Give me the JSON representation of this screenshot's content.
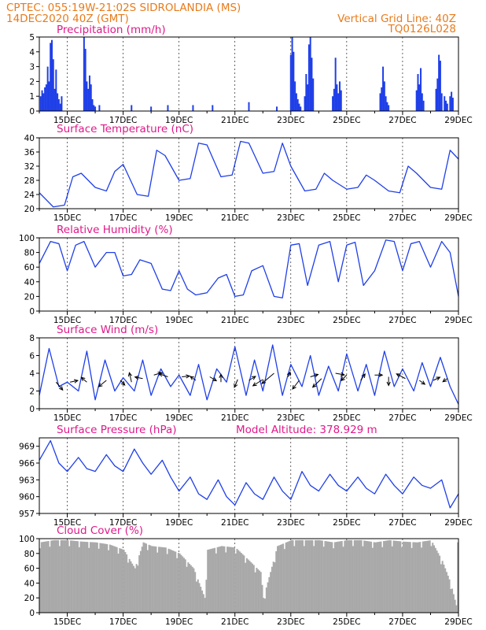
{
  "header": {
    "line1_left": "CPTEC:   055:19W-21:02S  SIDROLANDIA (MS)",
    "line2_left": "14DEC2020 40Z (GMT)",
    "line1_right": "Vertical Grid Line: 40Z",
    "line2_right": "TQ0126L028"
  },
  "colors": {
    "series": "#1f3fe8",
    "header": "#e87b1c",
    "title": "#e0198a",
    "cloud": "#a9a9a9",
    "wind_arrow": "#000000"
  },
  "x_axis": {
    "start": "14DEC2020",
    "end": "29DEC2020",
    "tick_labels": [
      "15DEC",
      "17DEC",
      "19DEC",
      "21DEC",
      "23DEC",
      "25DEC",
      "27DEC",
      "29DEC"
    ],
    "tick_days": [
      1,
      3,
      5,
      7,
      9,
      11,
      13,
      15
    ]
  },
  "chart_data": [
    {
      "type": "bar",
      "title": "Precipitation (mm/h)",
      "ylim": [
        0,
        5
      ],
      "yticks": [
        "0",
        "1",
        "2",
        "3",
        "4",
        "5"
      ],
      "ytick_values": [
        0,
        1,
        2,
        3,
        4,
        5
      ],
      "x": [
        0.05,
        0.1,
        0.15,
        0.2,
        0.25,
        0.3,
        0.35,
        0.4,
        0.45,
        0.5,
        0.55,
        0.6,
        0.65,
        0.7,
        0.75,
        0.8,
        1.6,
        1.65,
        1.7,
        1.75,
        1.8,
        1.85,
        1.9,
        1.95,
        2.0,
        2.15,
        3.3,
        4.0,
        4.6,
        5.5,
        6.2,
        7.5,
        8.5,
        9.0,
        9.05,
        9.1,
        9.15,
        9.2,
        9.25,
        9.3,
        9.35,
        9.5,
        9.55,
        9.6,
        9.65,
        9.7,
        9.75,
        9.8,
        10.5,
        10.55,
        10.6,
        10.65,
        10.7,
        10.75,
        10.8,
        12.2,
        12.25,
        12.3,
        12.35,
        12.4,
        12.45,
        12.5,
        13.5,
        13.55,
        13.6,
        13.65,
        13.7,
        13.75,
        14.2,
        14.25,
        14.3,
        14.35,
        14.4,
        14.5,
        14.55,
        14.6,
        14.7,
        14.75,
        14.8
      ],
      "values": [
        1.0,
        1.4,
        1.2,
        1.6,
        1.8,
        3.0,
        2.0,
        4.6,
        4.8,
        3.5,
        1.5,
        2.8,
        1.2,
        0.8,
        0.5,
        1.0,
        5.0,
        4.2,
        2.0,
        1.5,
        2.4,
        1.8,
        0.8,
        0.4,
        0.3,
        0.4,
        0.4,
        0.3,
        0.4,
        0.4,
        0.4,
        0.6,
        0.3,
        3.8,
        5.0,
        4.0,
        2.0,
        1.2,
        0.8,
        0.5,
        0.3,
        1.0,
        2.5,
        1.8,
        4.5,
        5.0,
        3.6,
        2.2,
        1.0,
        1.5,
        3.6,
        1.8,
        1.2,
        2.0,
        1.4,
        1.2,
        1.6,
        3.0,
        2.0,
        1.0,
        0.6,
        0.4,
        1.4,
        2.5,
        1.8,
        2.9,
        1.2,
        0.7,
        1.5,
        2.2,
        3.8,
        3.4,
        1.2,
        1.0,
        0.7,
        0.5,
        1.0,
        1.3,
        0.9
      ]
    },
    {
      "type": "line",
      "title": "Surface Temperature (nC)",
      "ylim": [
        20,
        40
      ],
      "yticks": [
        "20",
        "24",
        "28",
        "32",
        "36",
        "40"
      ],
      "ytick_values": [
        20,
        24,
        28,
        32,
        36,
        40
      ],
      "x": [
        0,
        0.5,
        0.9,
        1.2,
        1.5,
        2.0,
        2.4,
        2.7,
        3.0,
        3.5,
        3.9,
        4.2,
        4.5,
        5.0,
        5.4,
        5.7,
        6.0,
        6.5,
        6.9,
        7.2,
        7.5,
        8.0,
        8.4,
        8.7,
        9.0,
        9.5,
        9.9,
        10.2,
        10.5,
        11.0,
        11.4,
        11.7,
        12.0,
        12.5,
        12.9,
        13.2,
        13.5,
        14.0,
        14.4,
        14.7,
        15.0
      ],
      "values": [
        24.5,
        20.5,
        21,
        29,
        30,
        26,
        25,
        30.5,
        32.5,
        24,
        23.5,
        36.5,
        35,
        28,
        28.5,
        38.5,
        38,
        29,
        29.5,
        39,
        38.5,
        30,
        30.5,
        38.5,
        32,
        25,
        25.5,
        30,
        28,
        25.5,
        26,
        29.5,
        28,
        25,
        24.5,
        32,
        30,
        26,
        25.5,
        36.5,
        34
      ]
    },
    {
      "type": "line",
      "title": "Relative Humidity (%)",
      "ylim": [
        0,
        100
      ],
      "yticks": [
        "0",
        "20",
        "40",
        "60",
        "80",
        "100"
      ],
      "ytick_values": [
        0,
        20,
        40,
        60,
        80,
        100
      ],
      "x": [
        0,
        0.4,
        0.7,
        1.0,
        1.3,
        1.6,
        2.0,
        2.4,
        2.7,
        3.0,
        3.3,
        3.6,
        4.0,
        4.4,
        4.7,
        5.0,
        5.3,
        5.6,
        6.0,
        6.4,
        6.7,
        7.0,
        7.3,
        7.6,
        8.0,
        8.4,
        8.7,
        9.0,
        9.3,
        9.6,
        10.0,
        10.4,
        10.7,
        11.0,
        11.3,
        11.6,
        12.0,
        12.4,
        12.7,
        13.0,
        13.3,
        13.6,
        14.0,
        14.4,
        14.7,
        15.0
      ],
      "values": [
        65,
        95,
        92,
        55,
        90,
        95,
        60,
        80,
        80,
        48,
        50,
        70,
        65,
        30,
        28,
        55,
        30,
        22,
        25,
        45,
        50,
        20,
        22,
        55,
        62,
        20,
        18,
        90,
        92,
        35,
        90,
        95,
        40,
        90,
        94,
        35,
        55,
        97,
        95,
        55,
        92,
        95,
        60,
        95,
        80,
        20
      ]
    },
    {
      "type": "line",
      "title": "Surface Wind (m/s)",
      "ylim": [
        0,
        8
      ],
      "yticks": [
        "0",
        "2",
        "4",
        "6",
        "8"
      ],
      "ytick_values": [
        0,
        2,
        4,
        6,
        8
      ],
      "x": [
        0,
        0.35,
        0.7,
        1.0,
        1.4,
        1.7,
        2.0,
        2.35,
        2.7,
        3.0,
        3.4,
        3.7,
        4.0,
        4.35,
        4.7,
        5.0,
        5.4,
        5.7,
        6.0,
        6.35,
        6.7,
        7.0,
        7.4,
        7.7,
        8.0,
        8.35,
        8.7,
        9.0,
        9.4,
        9.7,
        10.0,
        10.35,
        10.7,
        11.0,
        11.4,
        11.7,
        12.0,
        12.35,
        12.7,
        13.0,
        13.4,
        13.7,
        14.0,
        14.35,
        14.7,
        15.0
      ],
      "values": [
        1.5,
        6.8,
        2.5,
        3.0,
        2.0,
        6.5,
        1.0,
        5.5,
        2.0,
        3.5,
        2.0,
        5.5,
        1.5,
        4.5,
        2.5,
        3.8,
        1.5,
        5.0,
        1.0,
        4.5,
        3.0,
        7.0,
        1.5,
        5.5,
        2.0,
        7.2,
        1.5,
        5.0,
        2.5,
        6.0,
        1.5,
        4.8,
        2.0,
        6.2,
        2.0,
        5.0,
        1.5,
        6.5,
        2.5,
        4.5,
        2.0,
        5.2,
        2.5,
        5.8,
        2.5,
        0.5
      ],
      "arrows": [
        {
          "x": 0.6,
          "y": 3.0,
          "u": 0.6,
          "v": -1.0
        },
        {
          "x": 1.1,
          "y": 3.0,
          "u": 0.7,
          "v": 0.2
        },
        {
          "x": 1.7,
          "y": 3.0,
          "u": -0.5,
          "v": 0.6
        },
        {
          "x": 2.4,
          "y": 3.2,
          "u": -0.7,
          "v": -0.8
        },
        {
          "x": 2.9,
          "y": 3.2,
          "u": 0.4,
          "v": -0.6
        },
        {
          "x": 3.3,
          "y": 3.0,
          "u": -0.2,
          "v": 1.2
        },
        {
          "x": 3.7,
          "y": 3.4,
          "u": -0.7,
          "v": 0.2
        },
        {
          "x": 4.1,
          "y": 3.8,
          "u": 0.7,
          "v": 0.3
        },
        {
          "x": 4.6,
          "y": 3.6,
          "u": -0.8,
          "v": 0.4
        },
        {
          "x": 5.1,
          "y": 3.6,
          "u": 0.7,
          "v": 0.1
        },
        {
          "x": 5.6,
          "y": 3.2,
          "u": -0.5,
          "v": 0.5
        },
        {
          "x": 6.1,
          "y": 3.6,
          "u": 0.6,
          "v": -0.5
        },
        {
          "x": 6.5,
          "y": 3.0,
          "u": 0.0,
          "v": 1.0
        },
        {
          "x": 7.1,
          "y": 3.3,
          "u": -0.3,
          "v": -1.0
        },
        {
          "x": 7.5,
          "y": 3.2,
          "u": 0.6,
          "v": 0.5
        },
        {
          "x": 8.0,
          "y": 3.3,
          "u": -0.9,
          "v": -0.8
        },
        {
          "x": 8.4,
          "y": 4.0,
          "u": -1.1,
          "v": -1.3
        },
        {
          "x": 8.9,
          "y": 3.6,
          "u": 0.2,
          "v": 0.6
        },
        {
          "x": 9.3,
          "y": 3.2,
          "u": -0.6,
          "v": -1.1
        },
        {
          "x": 9.7,
          "y": 3.6,
          "u": 0.7,
          "v": 0.3
        },
        {
          "x": 10.1,
          "y": 3.4,
          "u": -0.8,
          "v": -1.1
        },
        {
          "x": 10.6,
          "y": 4.0,
          "u": 0.8,
          "v": -0.2
        },
        {
          "x": 11.0,
          "y": 3.8,
          "u": -0.5,
          "v": -0.7
        },
        {
          "x": 11.5,
          "y": 3.2,
          "u": 0.4,
          "v": 0.8
        },
        {
          "x": 12.0,
          "y": 3.8,
          "u": 0.7,
          "v": 0.0
        },
        {
          "x": 12.5,
          "y": 3.6,
          "u": 0.0,
          "v": -1.1
        },
        {
          "x": 13.1,
          "y": 3.4,
          "u": -0.8,
          "v": 0.6
        },
        {
          "x": 13.6,
          "y": 3.2,
          "u": 0.5,
          "v": -0.5
        },
        {
          "x": 14.1,
          "y": 3.2,
          "u": 0.6,
          "v": 0.4
        },
        {
          "x": 14.6,
          "y": 3.4,
          "u": -0.4,
          "v": -0.4
        }
      ]
    },
    {
      "type": "line",
      "title": "Surface Pressure (hPa)",
      "annotation": "Model Altitude: 378.929  m",
      "ylim": [
        957,
        970.5
      ],
      "yticks": [
        "957",
        "960",
        "963",
        "966",
        "969"
      ],
      "ytick_values": [
        957,
        960,
        963,
        966,
        969
      ],
      "x": [
        0,
        0.4,
        0.7,
        1.0,
        1.4,
        1.7,
        2.0,
        2.4,
        2.7,
        3.0,
        3.4,
        3.7,
        4.0,
        4.4,
        4.7,
        5.0,
        5.4,
        5.7,
        6.0,
        6.4,
        6.7,
        7.0,
        7.4,
        7.7,
        8.0,
        8.4,
        8.7,
        9.0,
        9.4,
        9.7,
        10.0,
        10.4,
        10.7,
        11.0,
        11.4,
        11.7,
        12.0,
        12.4,
        12.7,
        13.0,
        13.4,
        13.7,
        14.0,
        14.4,
        14.7,
        15.0
      ],
      "values": [
        966.5,
        970,
        966,
        964.5,
        967,
        965,
        964.5,
        967.5,
        965.5,
        964.5,
        968.5,
        966,
        964,
        966.5,
        963.5,
        961,
        963.5,
        960.5,
        959.5,
        963,
        960,
        958.5,
        962.5,
        960.5,
        959.5,
        963.5,
        961,
        959.5,
        964.5,
        962,
        961,
        964,
        962,
        961,
        963.5,
        961.5,
        960.5,
        964,
        962,
        960.5,
        963.5,
        962,
        961.5,
        963,
        958,
        960.5
      ]
    },
    {
      "type": "bar",
      "title": "Cloud Cover (%)",
      "ylim": [
        0,
        100
      ],
      "yticks": [
        "0",
        "20",
        "40",
        "60",
        "80",
        "100"
      ],
      "ytick_values": [
        0,
        20,
        40,
        60,
        80,
        100
      ],
      "x": [
        0,
        0.5,
        1,
        1.5,
        2,
        2.5,
        3,
        3.4,
        3.7,
        4,
        4.5,
        5,
        5.5,
        5.9,
        6,
        6.5,
        7,
        7.5,
        7.9,
        8,
        8.5,
        9,
        9.5,
        10,
        10.5,
        11,
        11.5,
        12,
        12.5,
        13,
        13.5,
        14,
        14.4,
        14.7,
        14.9
      ],
      "values": [
        95,
        98,
        98,
        96,
        95,
        92,
        85,
        60,
        95,
        90,
        88,
        80,
        60,
        20,
        85,
        90,
        88,
        70,
        55,
        20,
        90,
        98,
        98,
        98,
        95,
        98,
        98,
        95,
        98,
        96,
        95,
        98,
        70,
        40,
        10
      ]
    }
  ]
}
